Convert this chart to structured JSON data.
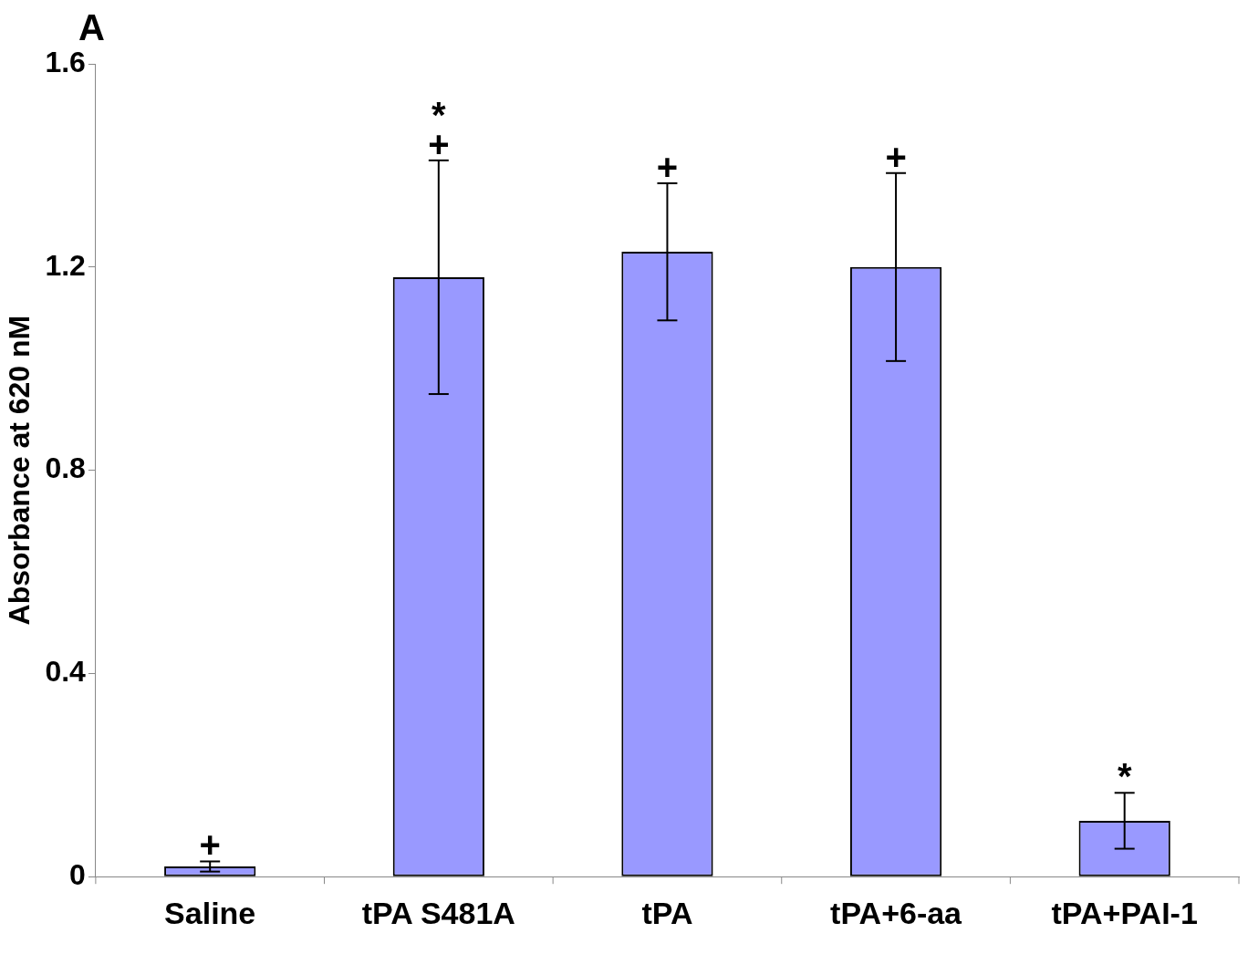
{
  "chart_data": {
    "type": "bar",
    "title": "A",
    "ylabel": "Absorbance at 620 nM",
    "categories": [
      "Saline",
      "tPA S481A",
      "tPA",
      "tPA+6-aa",
      "tPA+PAI-1"
    ],
    "values": [
      0.02,
      1.18,
      1.23,
      1.2,
      0.11
    ],
    "errors": [
      0.01,
      0.23,
      0.135,
      0.185,
      0.055
    ],
    "color": "#9999ff",
    "value_labels": [
      "+",
      "*\n+",
      "+",
      "+",
      "*"
    ],
    "ylim": [
      0,
      1.6
    ],
    "yticks": [
      0,
      0.4,
      0.8,
      1.2,
      1.6
    ],
    "grid": false,
    "legend": false
  }
}
